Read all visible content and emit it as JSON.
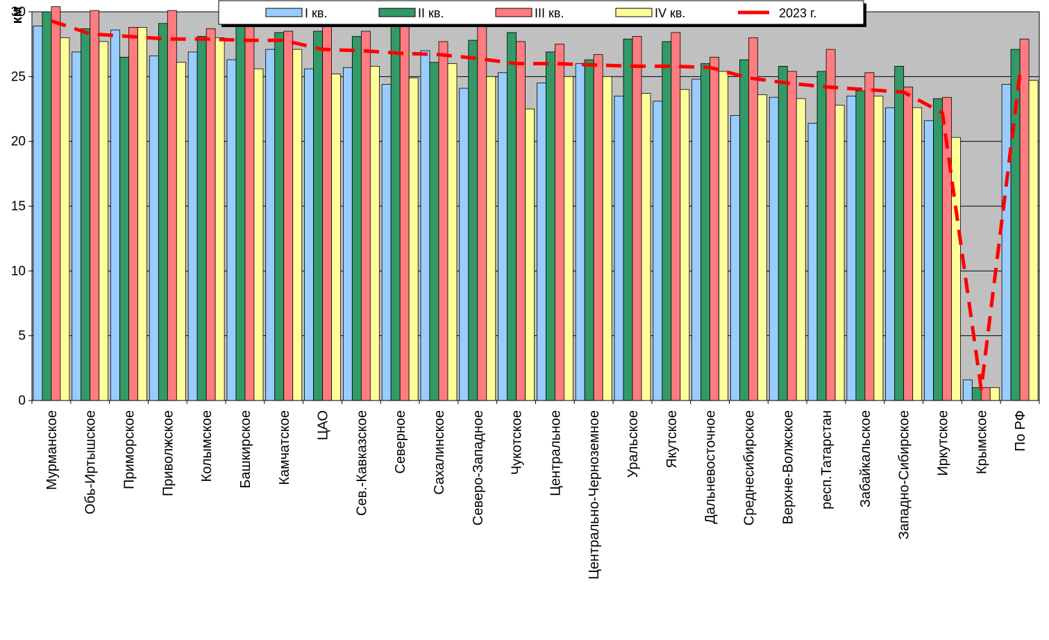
{
  "chart_data": {
    "type": "bar",
    "ylabel": "км",
    "ylim": [
      0,
      30
    ],
    "yticks": [
      "0",
      "5",
      "10",
      "15",
      "20",
      "25",
      "30"
    ],
    "grid": true,
    "legend_position": "top",
    "categories": [
      "Мурманское",
      "Обь-Иртышское",
      "Приморское",
      "Приволжское",
      "Колымское",
      "Башкирское",
      "Камчатское",
      "ЦАО",
      "Сев.-Кавказское",
      "Северное",
      "Сахалинское",
      "Северо-Западное",
      "Чукотское",
      "Центральное",
      "Центрально-Черноземное",
      "Уральское",
      "Якутское",
      "Дальневосточное",
      "Среднесибирское",
      "Верхне-Волжское",
      "респ.Татарстан",
      "Забайкальское",
      "Западно-Сибирское",
      "Иркутское",
      "Крымское",
      "По РФ"
    ],
    "series": [
      {
        "name": "I кв.",
        "color": "#99CCFF",
        "values": [
          28.9,
          26.9,
          28.6,
          26.6,
          26.9,
          26.3,
          27.1,
          25.6,
          25.7,
          24.4,
          27.0,
          24.1,
          25.3,
          24.5,
          26.0,
          23.5,
          23.1,
          24.8,
          22.0,
          23.4,
          21.4,
          23.5,
          22.6,
          21.6,
          1.6,
          24.4
        ]
      },
      {
        "name": "II кв.",
        "color": "#339966",
        "values": [
          30.0,
          28.7,
          26.5,
          29.1,
          28.1,
          29.5,
          28.4,
          28.5,
          28.1,
          28.9,
          26.1,
          27.8,
          28.4,
          26.9,
          26.3,
          27.9,
          27.7,
          26.0,
          26.3,
          25.8,
          25.4,
          23.9,
          25.8,
          23.3,
          1.0,
          27.1
        ]
      },
      {
        "name": "III кв.",
        "color": "#FF7C80",
        "values": [
          30.4,
          30.1,
          28.8,
          30.1,
          28.7,
          29.8,
          28.5,
          28.9,
          28.5,
          29.2,
          27.7,
          29.0,
          27.7,
          27.5,
          26.7,
          28.1,
          28.4,
          26.5,
          28.0,
          25.4,
          27.1,
          25.3,
          24.2,
          23.4,
          1.0,
          27.9
        ]
      },
      {
        "name": "IV кв.",
        "color": "#FFFF99",
        "values": [
          28.0,
          27.7,
          28.8,
          26.1,
          28.0,
          25.6,
          27.1,
          25.2,
          25.8,
          24.9,
          26.0,
          25.0,
          22.5,
          25.0,
          25.0,
          23.7,
          24.0,
          25.4,
          23.6,
          23.3,
          22.8,
          23.5,
          22.6,
          20.3,
          1.0,
          24.7
        ]
      }
    ],
    "line": {
      "name": "2023 г.",
      "color": "#FF0000",
      "values": [
        29.3,
        28.3,
        28.1,
        27.9,
        27.9,
        27.8,
        27.8,
        27.1,
        27.0,
        26.8,
        26.7,
        26.4,
        26.0,
        26.0,
        25.9,
        25.8,
        25.8,
        25.7,
        24.9,
        24.5,
        24.2,
        24.0,
        23.8,
        22.2,
        0.9,
        25.2
      ]
    }
  }
}
